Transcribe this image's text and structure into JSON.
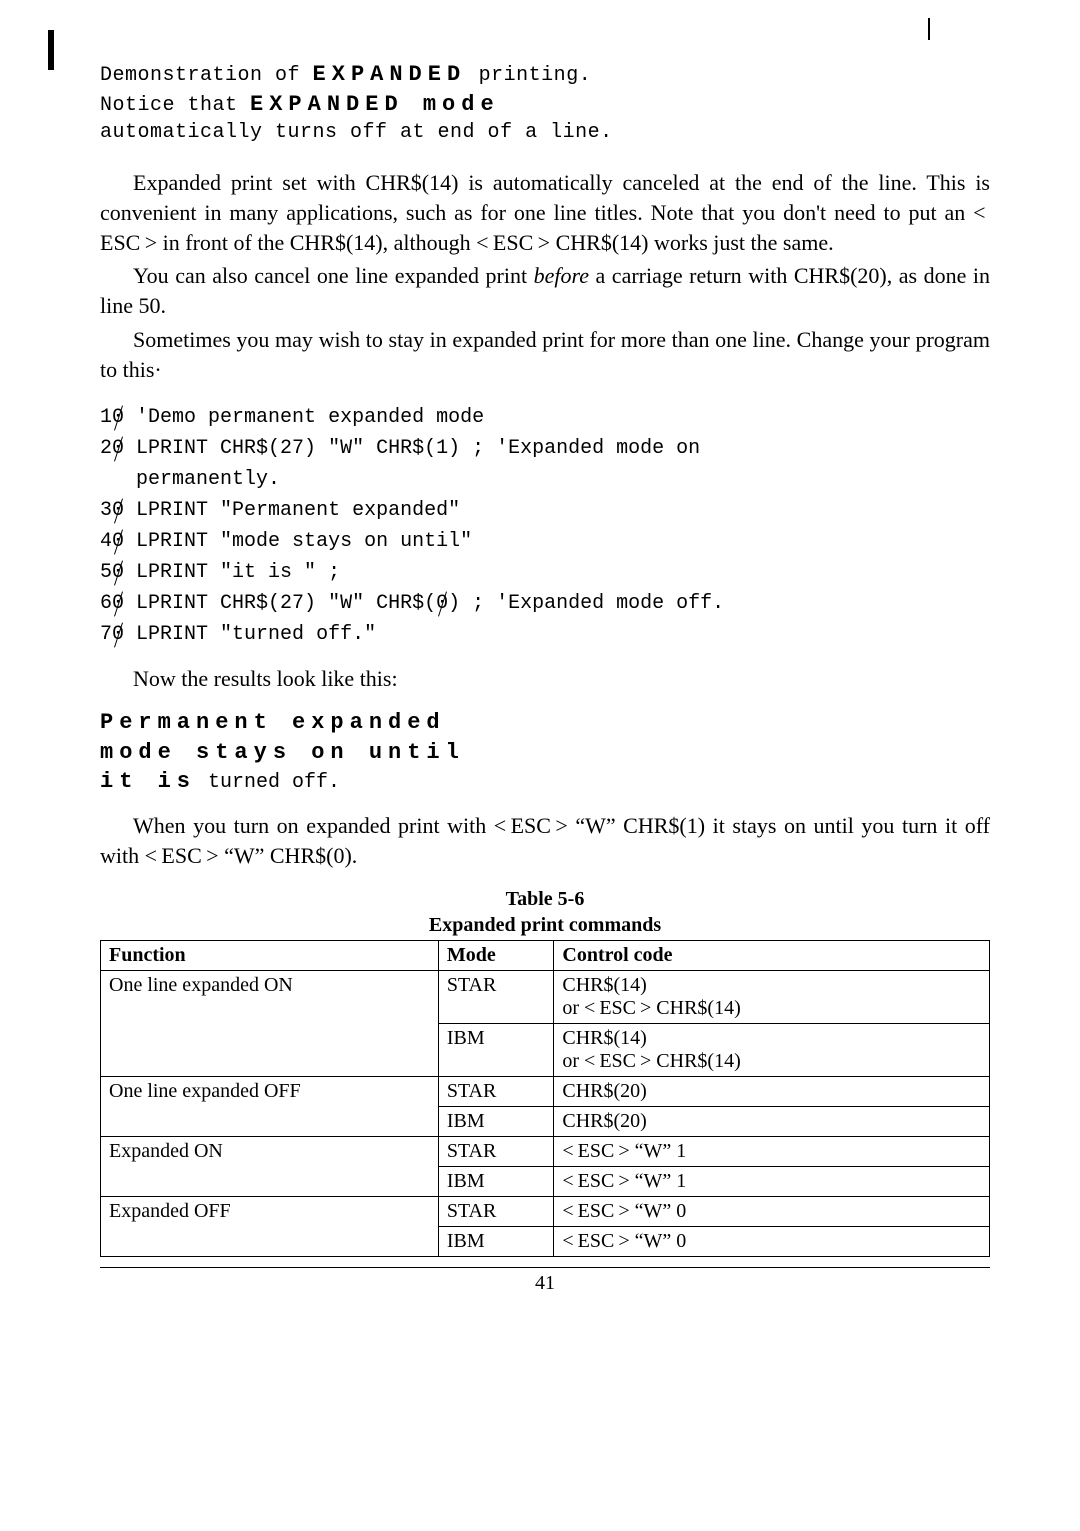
{
  "demo1": {
    "line1a": "Demonstration of ",
    "line1b": "EXPANDED",
    "line1c": " printing.",
    "line2a": "Notice that ",
    "line2b": "EXPANDED  mode",
    "line3": "automatically turns off at end of a line."
  },
  "para1": "Expanded print set with CHR$(14) is automatically canceled at the end of the line. This is convenient in many applications, such as for one line titles. Note that you don't need to put an < ESC > in front of the CHR$(14), although < ESC > CHR$(14) works just the same.",
  "para2": "You can also cancel one line expanded print before a carriage return with CHR$(20), as done in line 50.",
  "para2_before": "You can also cancel one line expanded print ",
  "para2_em": "before",
  "para2_after": " a carriage return with CHR$(20), as done in line 50.",
  "para3": "Sometimes you may wish to stay in expanded print for more than one line. Change your program to this·",
  "code": {
    "l10": " 'Demo permanent expanded mode",
    "l20a": " LPRINT CHR$(27) \"W\" CHR$(1) ; 'Expanded mode on",
    "l20b": "   permanently.",
    "l30": " LPRINT \"Permanent expanded\"",
    "l40": " LPRINT \"mode stays on until\"",
    "l50": " LPRINT \"it is \" ;",
    "l60a": " LPRINT CHR$(27) \"W\" CHR$(",
    "l60b": ") ; 'Expanded mode off.",
    "l70": " LPRINT \"turned off.\""
  },
  "result_intro": "Now the results look like this:",
  "demo2": {
    "line1": "Permanent  expanded",
    "line2": "mode  stays  on  until",
    "line3a": "it  is",
    "line3b": "  turned off."
  },
  "para4": "When you turn on expanded print with < ESC > “W” CHR$(1) it stays on until you turn it off with < ESC > “W” CHR$(0).",
  "table": {
    "number": "Table 5-6",
    "title": "Expanded print commands",
    "headers": {
      "func": "Function",
      "mode": "Mode",
      "code": "Control code"
    },
    "rows": [
      {
        "func": "One line expanded ON",
        "mode": "STAR",
        "code": "CHR$(14)\nor < ESC > CHR$(14)",
        "rowspan_func": 2
      },
      {
        "func": "",
        "mode": "IBM",
        "code": "CHR$(14)\nor < ESC > CHR$(14)"
      },
      {
        "func": "One line expanded OFF",
        "mode": "STAR",
        "code": "CHR$(20)",
        "rowspan_func": 2
      },
      {
        "func": "",
        "mode": "IBM",
        "code": "CHR$(20)"
      },
      {
        "func": "Expanded ON",
        "mode": "STAR",
        "code": "< ESC > “W” 1",
        "rowspan_func": 2
      },
      {
        "func": "",
        "mode": "IBM",
        "code": "< ESC > “W” 1"
      },
      {
        "func": "Expanded OFF",
        "mode": "STAR",
        "code": "< ESC > “W” 0",
        "rowspan_func": 2
      },
      {
        "func": "",
        "mode": "IBM",
        "code": "< ESC > “W” 0"
      }
    ]
  },
  "pagenum": "41"
}
